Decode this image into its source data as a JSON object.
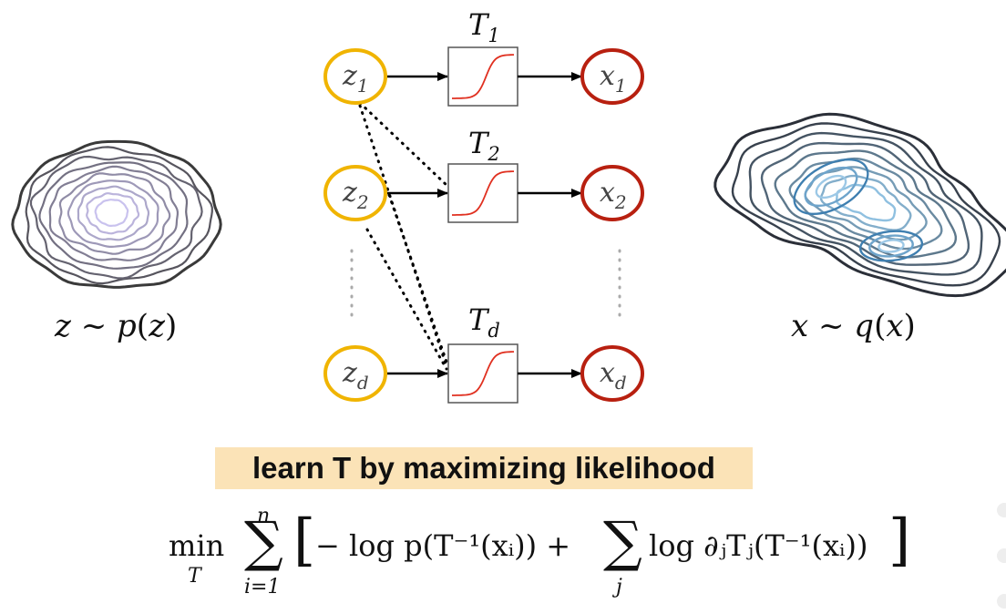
{
  "diagram": {
    "transforms": [
      {
        "name": "T",
        "sub": "1"
      },
      {
        "name": "T",
        "sub": "2"
      },
      {
        "name": "T",
        "sub": "d"
      }
    ],
    "inputs": [
      {
        "name": "z",
        "sub": "1"
      },
      {
        "name": "z",
        "sub": "2"
      },
      {
        "name": "z",
        "sub": "d"
      }
    ],
    "outputs": [
      {
        "name": "x",
        "sub": "1"
      },
      {
        "name": "x",
        "sub": "2"
      },
      {
        "name": "x",
        "sub": "d"
      }
    ],
    "input_color": "#f0b400",
    "output_color": "#b82010",
    "curve_color": "#e03020",
    "left_caption": {
      "a": "z",
      "rel": " ~ ",
      "b": "p",
      "c": "(",
      "d": "z",
      "e": ")"
    },
    "right_caption": {
      "a": "x",
      "rel": " ~ ",
      "b": "q",
      "c": "(",
      "d": "x",
      "e": ")"
    },
    "left_contour_color": "#7a70c0",
    "right_contour_color": "#3f7fb0"
  },
  "banner": {
    "text": "learn T by maximizing likelihood",
    "bg": "#fbe3b7"
  },
  "formula": {
    "min": "min",
    "min_sub": "T",
    "sum_upper": "n",
    "sum_lower": "i=1",
    "sum_j_lower": "j",
    "body_left": "− log p(T⁻¹(xᵢ))  +",
    "body_right": "log ∂ⱼTⱼ(T⁻¹(xᵢ))"
  }
}
